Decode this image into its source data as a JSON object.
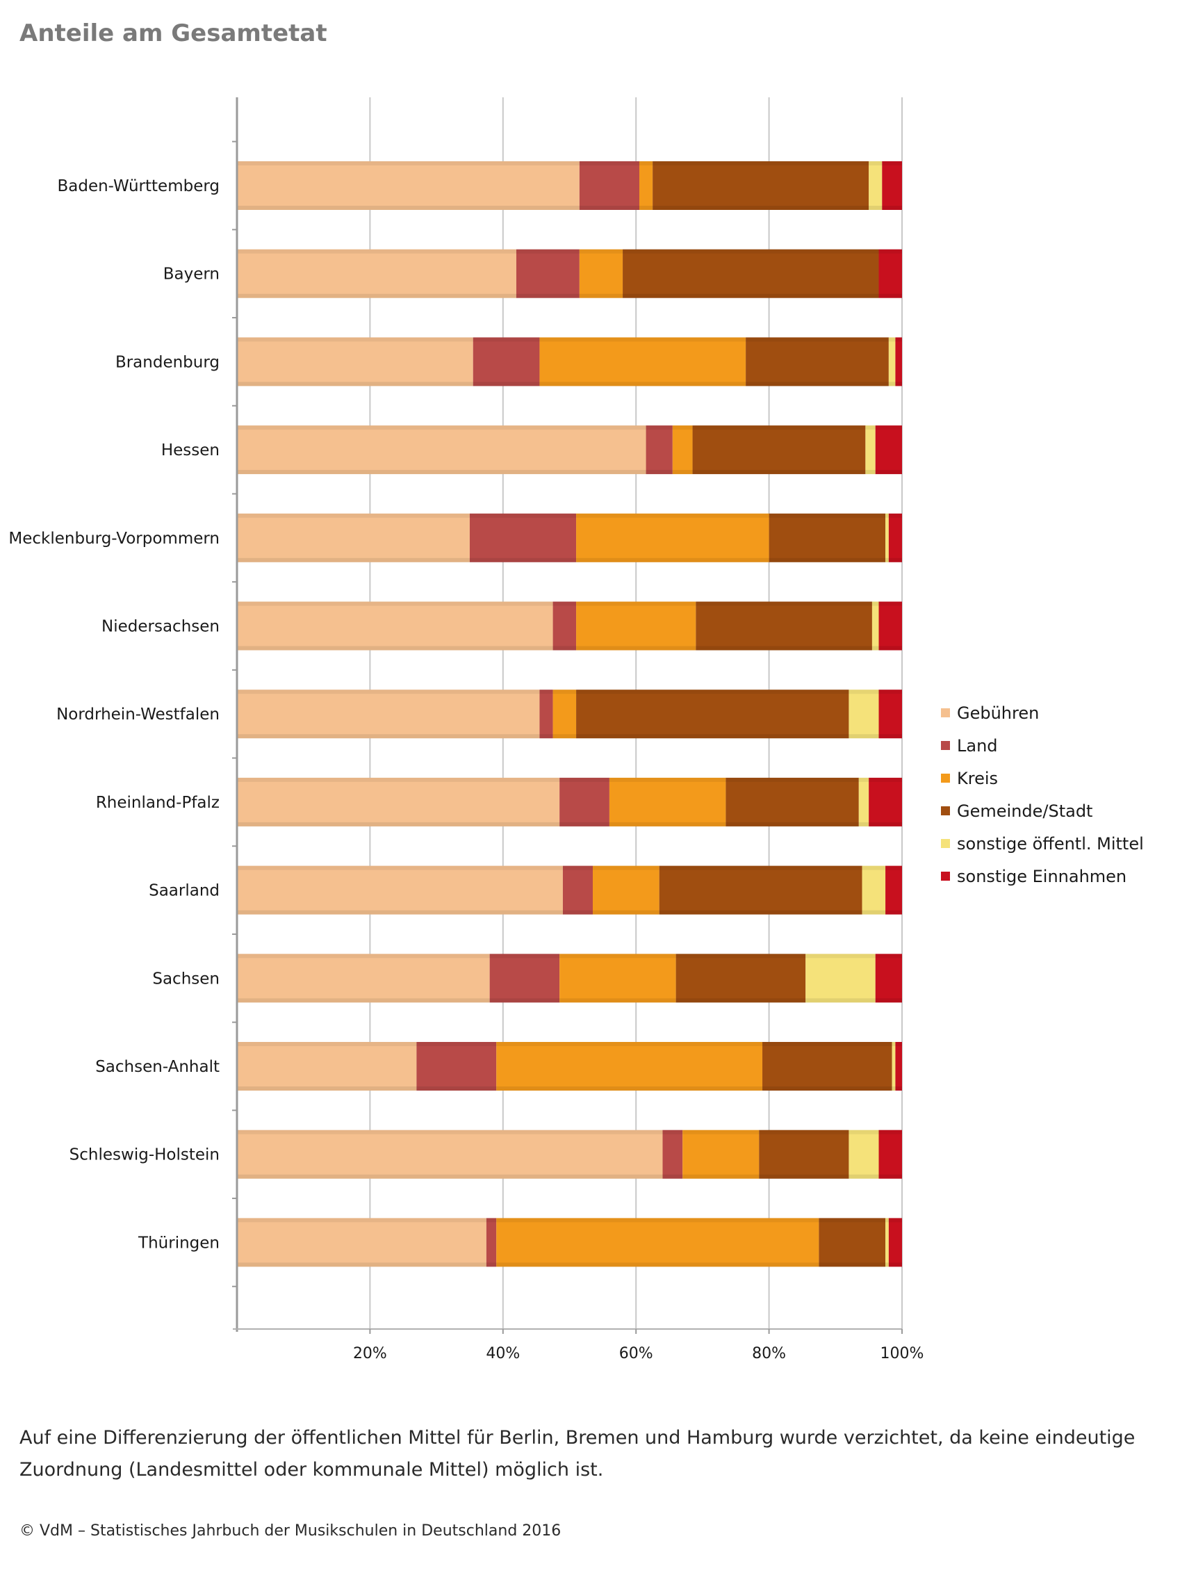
{
  "page": {
    "title": "Anteile am Gesamtetat",
    "footnote": "Auf eine Differenzierung der öffentlichen Mittel für Berlin, Bremen und Hamburg wurde verzichtet, da keine eindeutige Zuordnung (Landesmittel oder kommunale Mittel) möglich ist.",
    "source": "© VdM – Statistisches Jahrbuch der Musikschulen in Deutschland 2016"
  },
  "chart_data": {
    "type": "bar",
    "orientation": "horizontal",
    "stacked": true,
    "title": "Anteile am Gesamtetat",
    "xlim": [
      0,
      100
    ],
    "x_ticks": [
      20,
      40,
      60,
      80,
      100
    ],
    "x_tick_labels": [
      "20%",
      "40%",
      "60%",
      "80%",
      "100%"
    ],
    "grid": true,
    "legend_position": "right",
    "categories": [
      "Baden-Württemberg",
      "Bayern",
      "Brandenburg",
      "Hessen",
      "Mecklenburg-Vorpommern",
      "Niedersachsen",
      "Nordrhein-Westfalen",
      "Rheinland-Pfalz",
      "Saarland",
      "Sachsen",
      "Sachsen-Anhalt",
      "Schleswig-Holstein",
      "Thüringen"
    ],
    "series": [
      {
        "name": "Gebühren",
        "color": "#f5c08f",
        "values": [
          51.5,
          42.0,
          35.5,
          61.5,
          35.0,
          47.5,
          45.5,
          48.5,
          49.0,
          38.0,
          27.0,
          64.0,
          37.5
        ]
      },
      {
        "name": "Land",
        "color": "#b84a48",
        "values": [
          9.0,
          9.5,
          10.0,
          4.0,
          16.0,
          3.5,
          2.0,
          7.5,
          4.5,
          10.5,
          12.0,
          3.0,
          1.5
        ]
      },
      {
        "name": "Kreis",
        "color": "#f39a1b",
        "values": [
          2.0,
          6.5,
          31.0,
          3.0,
          29.0,
          18.0,
          3.5,
          17.5,
          10.0,
          17.5,
          40.0,
          11.5,
          48.5
        ]
      },
      {
        "name": "Gemeinde/Stadt",
        "color": "#a04e10",
        "values": [
          32.5,
          38.5,
          21.5,
          26.0,
          17.5,
          26.5,
          41.0,
          20.0,
          30.5,
          19.5,
          19.5,
          13.5,
          10.0
        ]
      },
      {
        "name": "sonstige öffentl. Mittel",
        "color": "#f5e27a",
        "values": [
          2.0,
          0.0,
          1.0,
          1.5,
          0.5,
          1.0,
          4.5,
          1.5,
          3.5,
          10.5,
          0.5,
          4.5,
          0.5
        ]
      },
      {
        "name": "sonstige Einnahmen",
        "color": "#c8101e",
        "values": [
          3.0,
          3.5,
          1.0,
          4.0,
          2.0,
          3.5,
          3.5,
          5.0,
          2.5,
          4.0,
          1.0,
          3.5,
          2.0
        ]
      }
    ]
  }
}
